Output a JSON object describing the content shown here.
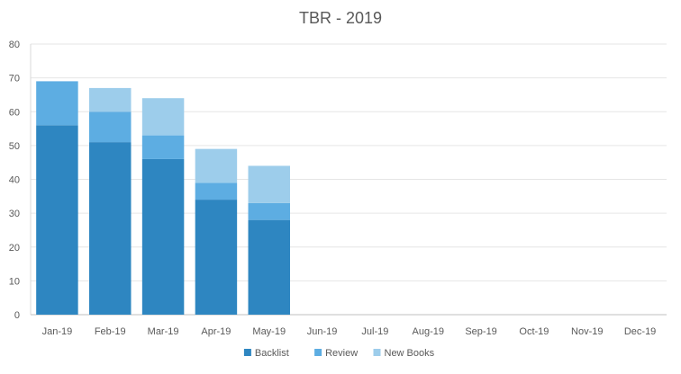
{
  "chart_data": {
    "type": "bar",
    "stacked": true,
    "title": "TBR - 2019",
    "xlabel": "",
    "ylabel": "",
    "ylim": [
      0,
      80
    ],
    "yticks": [
      0,
      10,
      20,
      30,
      40,
      50,
      60,
      70,
      80
    ],
    "grid": true,
    "legend_position": "bottom",
    "categories": [
      "Jan-19",
      "Feb-19",
      "Mar-19",
      "Apr-19",
      "May-19",
      "Jun-19",
      "Jul-19",
      "Aug-19",
      "Sep-19",
      "Oct-19",
      "Nov-19",
      "Dec-19"
    ],
    "series": [
      {
        "name": "Backlist",
        "color": "#2E86C1",
        "values": [
          56,
          51,
          46,
          34,
          28,
          null,
          null,
          null,
          null,
          null,
          null,
          null
        ]
      },
      {
        "name": "Review",
        "color": "#5DADE2",
        "values": [
          13,
          9,
          7,
          5,
          5,
          null,
          null,
          null,
          null,
          null,
          null,
          null
        ]
      },
      {
        "name": "New Books",
        "color": "#9DCDEB",
        "values": [
          0,
          7,
          11,
          10,
          11,
          null,
          null,
          null,
          null,
          null,
          null,
          null
        ]
      }
    ]
  }
}
